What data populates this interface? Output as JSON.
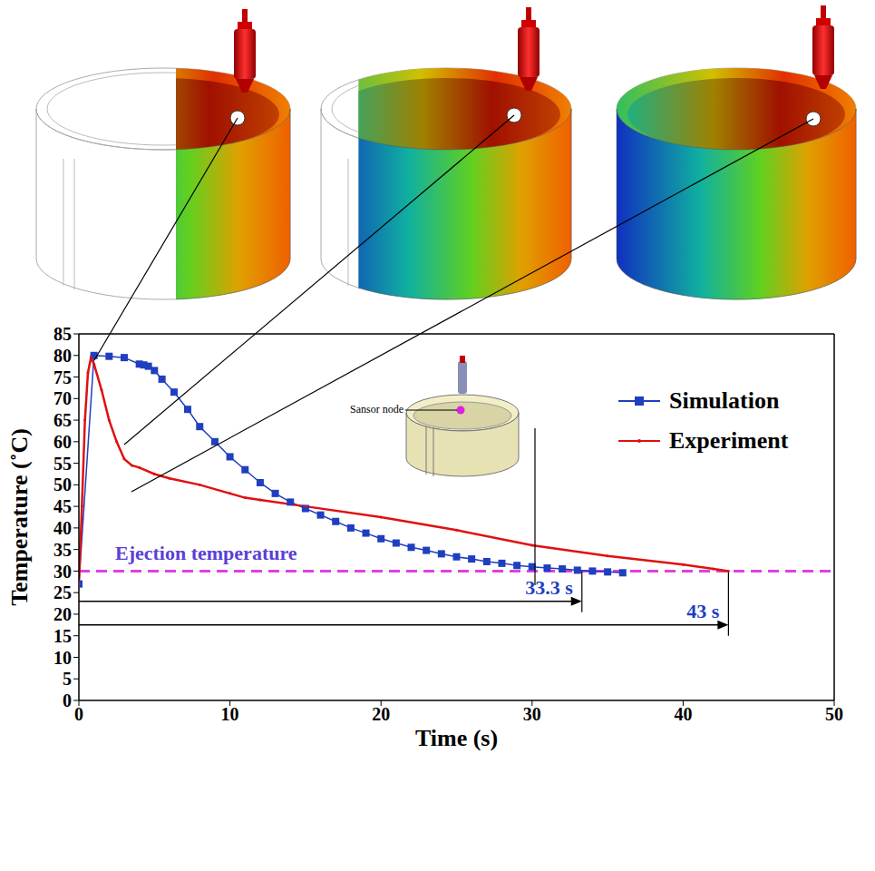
{
  "chart_data": {
    "type": "line",
    "xlabel": "Time (s)",
    "ylabel": "Temperature (˚C)",
    "xlim": [
      0,
      50
    ],
    "xticks": [
      0,
      10,
      20,
      30,
      40,
      50
    ],
    "ylim": [
      0,
      85
    ],
    "yticks": [
      0,
      5,
      10,
      15,
      20,
      25,
      30,
      35,
      40,
      45,
      50,
      55,
      60,
      65,
      70,
      75,
      80,
      85
    ],
    "grid": false,
    "legend": "upper right",
    "series": [
      {
        "name": "Simulation",
        "color": "#1f3fbf",
        "marker": "square",
        "line_style": "solid",
        "x": [
          0,
          1,
          2,
          3,
          4,
          4.3,
          4.6,
          5,
          5.5,
          6.3,
          7.2,
          8,
          9,
          10,
          11,
          12,
          13,
          14,
          15,
          16,
          17,
          18,
          19,
          20,
          21,
          22,
          23,
          24,
          25,
          26,
          27,
          28,
          29,
          30,
          31,
          32,
          33,
          34,
          35,
          36
        ],
        "values": [
          27,
          80,
          79.8,
          79.5,
          78,
          77.8,
          77.5,
          76.5,
          74.5,
          71.5,
          67.5,
          63.5,
          60,
          56.5,
          53.5,
          50.5,
          48,
          46,
          44.5,
          43,
          41.5,
          40,
          38.8,
          37.5,
          36.5,
          35.5,
          34.8,
          34,
          33.3,
          32.8,
          32.2,
          31.8,
          31.3,
          31,
          30.7,
          30.5,
          30.2,
          30,
          29.8,
          29.6
        ]
      },
      {
        "name": "Experiment",
        "color": "#e01010",
        "marker": "dot",
        "line_style": "solid",
        "x": [
          0,
          0.2,
          0.4,
          0.6,
          0.8,
          1,
          1.5,
          2,
          2.5,
          3,
          3.5,
          4,
          5,
          6,
          8,
          10,
          11,
          12,
          15,
          20,
          25,
          30,
          35,
          40,
          42,
          43
        ],
        "values": [
          27,
          45,
          65,
          76,
          79.5,
          78,
          72,
          65,
          60,
          56,
          54.5,
          54,
          52.5,
          51.5,
          50,
          48,
          47,
          46.5,
          45,
          42.5,
          39.5,
          36,
          33.5,
          31.5,
          30.5,
          30
        ]
      }
    ],
    "reference_line": {
      "text": "Ejection temperature",
      "y": 30,
      "color": "#e040e0",
      "line_style": "dashed"
    },
    "annotations": [
      {
        "text": "33.3 s",
        "x": 33.3,
        "y": 23,
        "color": "#1f3fbf"
      },
      {
        "text": "43 s",
        "x": 43,
        "y": 17.5,
        "color": "#1f3fbf"
      }
    ],
    "inset_label": "Sansor node"
  }
}
